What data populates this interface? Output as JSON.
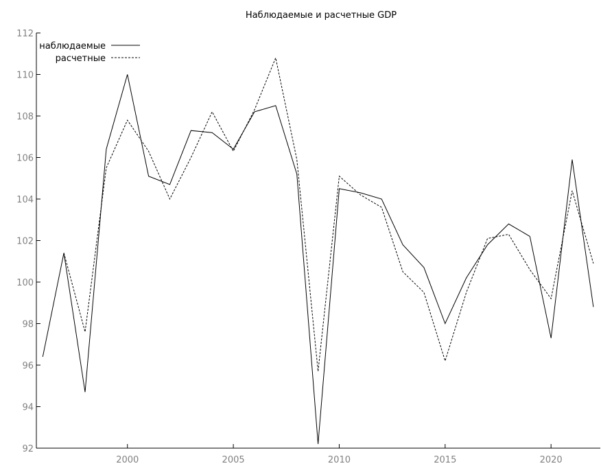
{
  "chart_data": {
    "type": "line",
    "title": "Наблюдаемые и расчетные GDP",
    "xlabel": "",
    "ylabel": "",
    "xlim": [
      1995.7,
      2022.1
    ],
    "ylim": [
      92,
      112
    ],
    "x_ticks": [
      2000,
      2005,
      2010,
      2015,
      2020
    ],
    "x_tick_labels": [
      "2000",
      "2005",
      "2010",
      "2015",
      "2020"
    ],
    "y_ticks": [
      92,
      94,
      96,
      98,
      100,
      102,
      104,
      106,
      108,
      110,
      112
    ],
    "y_tick_labels": [
      "92",
      "94",
      "96",
      "98",
      "100",
      "102",
      "104",
      "106",
      "108",
      "110",
      "112"
    ],
    "grid": false,
    "legend_position": "top-left",
    "x": [
      1996,
      1997,
      1998,
      1999,
      2000,
      2001,
      2002,
      2003,
      2004,
      2005,
      2006,
      2007,
      2008,
      2009,
      2010,
      2011,
      2012,
      2013,
      2014,
      2015,
      2016,
      2017,
      2018,
      2019,
      2020,
      2021,
      2022
    ],
    "series": [
      {
        "name": "наблюдаемые",
        "style": "solid",
        "color": "#000000",
        "values": [
          96.4,
          101.4,
          94.7,
          106.4,
          110.0,
          105.1,
          104.7,
          107.3,
          107.2,
          106.4,
          108.2,
          108.5,
          105.2,
          92.2,
          104.5,
          104.3,
          104.0,
          101.8,
          100.7,
          98.0,
          100.2,
          101.8,
          102.8,
          102.2,
          97.3,
          105.9,
          98.8
        ]
      },
      {
        "name": "расчетные",
        "style": "dashed",
        "color": "#000000",
        "values": [
          null,
          101.4,
          97.6,
          105.5,
          107.8,
          106.3,
          104.0,
          106.0,
          108.2,
          106.3,
          108.3,
          110.8,
          105.9,
          95.7,
          105.1,
          104.2,
          103.6,
          100.5,
          99.5,
          96.2,
          99.5,
          102.1,
          102.3,
          100.6,
          99.2,
          104.4,
          100.9
        ]
      }
    ]
  }
}
